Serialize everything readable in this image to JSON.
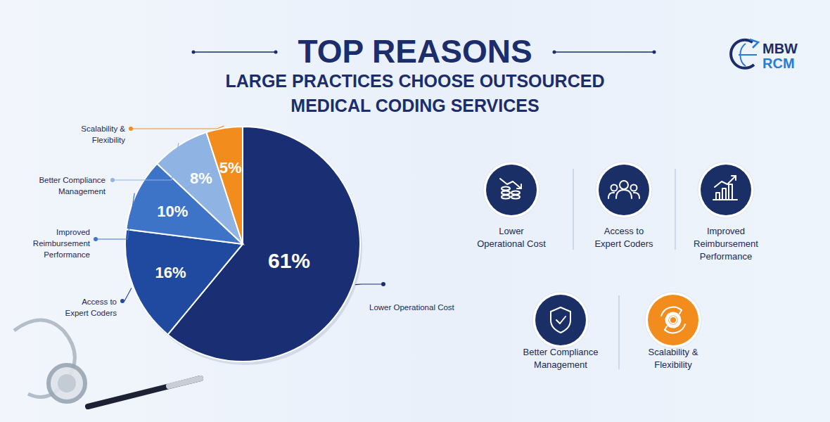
{
  "chart_data": {
    "type": "pie",
    "title": "TOP REASONS",
    "subtitle": "LARGE PRACTICES CHOOSE OUTSOURCED MEDICAL CODING SERVICES",
    "categories": [
      "Lower Operational Cost",
      "Access to Expert Coders",
      "Improved Reimbursement Performance",
      "Better Compliance Management",
      "Scalability & Flexibility"
    ],
    "values": [
      61,
      16,
      10,
      8,
      5
    ],
    "value_labels": [
      "61%",
      "16%",
      "10%",
      "8%",
      "5%"
    ],
    "colors": [
      "#1a2f73",
      "#1f4aa0",
      "#3d74c7",
      "#8fb3e3",
      "#f28c1c"
    ],
    "data_labels": true,
    "annotations": [
      "MBW",
      "RCM"
    ]
  }
}
